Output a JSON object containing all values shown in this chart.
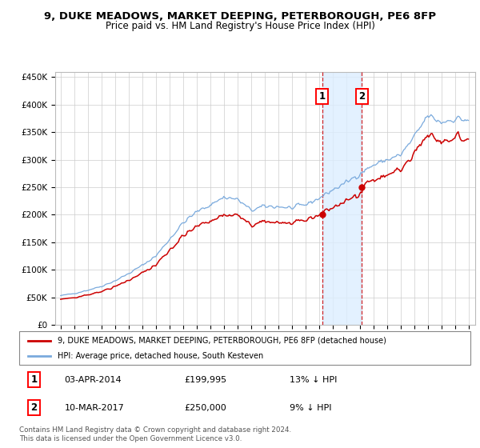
{
  "title": "9, DUKE MEADOWS, MARKET DEEPING, PETERBOROUGH, PE6 8FP",
  "subtitle": "Price paid vs. HM Land Registry's House Price Index (HPI)",
  "background_color": "#ffffff",
  "grid_color": "#cccccc",
  "hpi_color": "#7aaadd",
  "price_color": "#cc0000",
  "purchase1_date": "03-APR-2014",
  "purchase1_price": 199995,
  "purchase1_label": "13% ↓ HPI",
  "purchase2_date": "10-MAR-2017",
  "purchase2_price": 250000,
  "purchase2_label": "9% ↓ HPI",
  "ylim_min": 0,
  "ylim_max": 460000,
  "legend_price_label": "9, DUKE MEADOWS, MARKET DEEPING, PETERBOROUGH, PE6 8FP (detached house)",
  "legend_hpi_label": "HPI: Average price, detached house, South Kesteven",
  "footnote": "Contains HM Land Registry data © Crown copyright and database right 2024.\nThis data is licensed under the Open Government Licence v3.0.",
  "purchase1_x": 2014.25,
  "purchase2_x": 2017.17,
  "shade_color": "#ddeeff",
  "vline_color": "#cc0000",
  "xlim_min": 1994.6,
  "xlim_max": 2025.5
}
